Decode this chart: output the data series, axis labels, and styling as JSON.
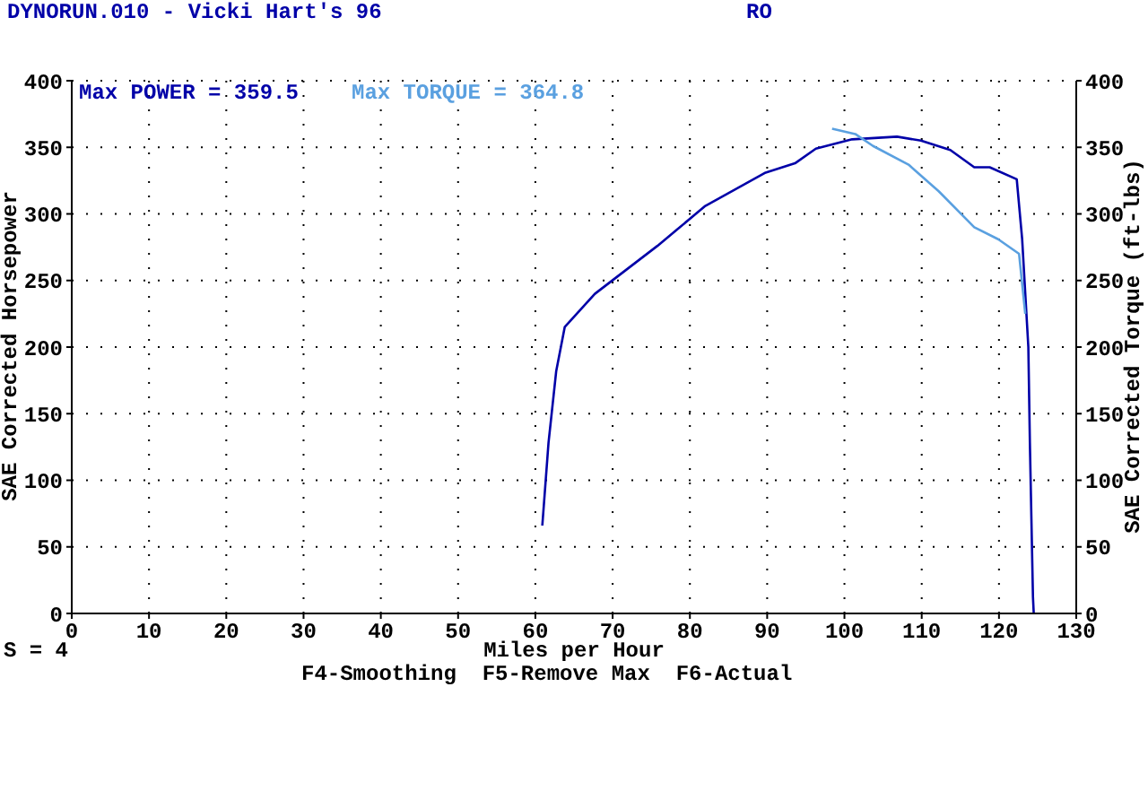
{
  "chart_data": {
    "type": "line",
    "title": "DYNORUN.010 - Vicki Hart's 96",
    "subtitle": "RO",
    "xlabel": "Miles per Hour",
    "ylabel": "SAE Corrected Horsepower",
    "y2label": "SAE Corrected Torque (ft-lbs)",
    "annotations": [
      "Max POWER = 359.5",
      "Max TORQUE = 364.8",
      "S = 4",
      "F4-Smoothing  F5-Remove Max  F6-Actual"
    ],
    "xlim": [
      0,
      130
    ],
    "xticks": [
      0,
      10,
      20,
      30,
      40,
      50,
      60,
      70,
      80,
      90,
      100,
      110,
      120,
      130
    ],
    "ylim": [
      0,
      400
    ],
    "yticks": [
      0,
      50,
      100,
      150,
      200,
      250,
      300,
      350,
      400
    ],
    "y2lim": [
      0,
      400
    ],
    "y2ticks": [
      0,
      50,
      100,
      150,
      200,
      250,
      300,
      350,
      400
    ],
    "grid": true,
    "marker": "none",
    "line_style": "solid",
    "series": [
      {
        "color": "#0000a8",
        "x": [
          60.9,
          61.7,
          62.7,
          63.8,
          67.7,
          75.8,
          82,
          89.8,
          93.6,
          96.3,
          101,
          106.8,
          109.9,
          113.7,
          116.8,
          118.8,
          122.3,
          123,
          123.8,
          124,
          124.4,
          124.5
        ],
        "values": [
          66,
          128,
          182,
          215,
          240,
          276,
          306,
          331,
          338,
          349,
          356,
          358,
          355,
          348,
          335,
          335,
          326,
          281,
          200,
          128,
          12,
          0
        ]
      },
      {
        "color": "#5aa0e0",
        "axis": "y2",
        "x": [
          98.4,
          101.4,
          103.7,
          108.3,
          112.2,
          116.8,
          119.9,
          122.6,
          123.4
        ],
        "values": [
          364,
          360,
          351,
          337,
          317,
          290,
          281,
          270,
          225
        ]
      }
    ]
  }
}
